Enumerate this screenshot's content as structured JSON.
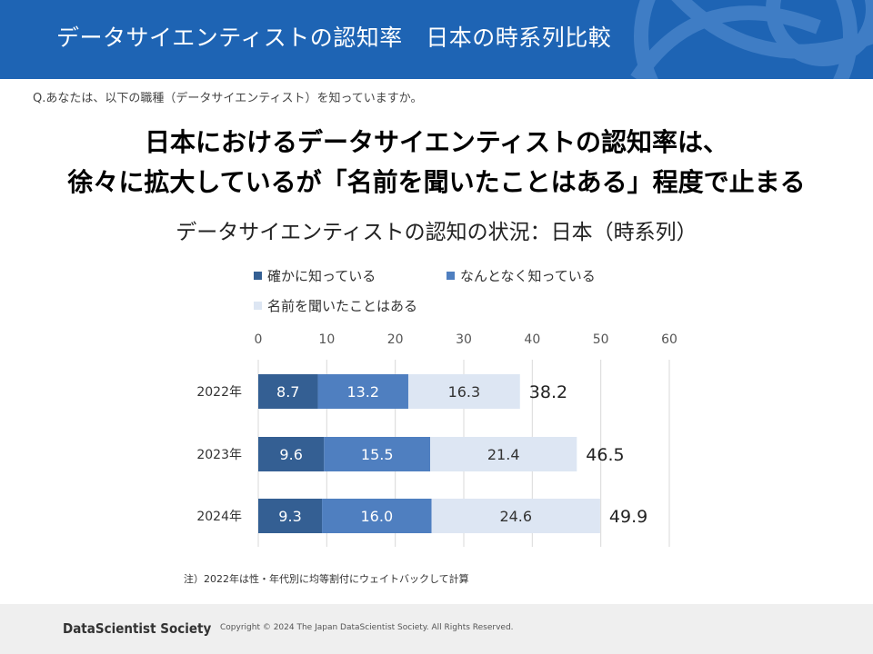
{
  "header": {
    "title": "データサイエンティストの認知率　日本の時系列比較"
  },
  "question": "Q.あなたは、以下の職種（データサイエンティスト）を知っていますか。",
  "headline": {
    "line1": "日本におけるデータサイエンティストの認知率は、",
    "line2": "徐々に拡大しているが「名前を聞いたことはある」程度で止まる"
  },
  "chart_data": {
    "type": "bar",
    "orientation": "horizontal",
    "stacked": true,
    "title": "データサイエンティストの認知の状況：日本（時系列）",
    "categories": [
      "2022年",
      "2023年",
      "2024年"
    ],
    "series": [
      {
        "name": "確かに知っている",
        "values": [
          8.7,
          9.6,
          9.3
        ],
        "color": "#345f93"
      },
      {
        "name": "なんとなく知っている",
        "values": [
          13.2,
          15.5,
          16.0
        ],
        "color": "#4f7fc0"
      },
      {
        "name": "名前を聞いたことはある",
        "values": [
          16.3,
          21.4,
          24.6
        ],
        "color": "#dde6f3"
      }
    ],
    "value_labels": {
      "確かに知っている": [
        "8.7",
        "9.6",
        "9.3"
      ],
      "なんとなく知っている": [
        "13.2",
        "15.5",
        "16.0"
      ],
      "名前を聞いたことはある": [
        "16.3",
        "21.4",
        "24.6"
      ]
    },
    "totals": [
      "38.2",
      "46.5",
      "49.9"
    ],
    "xlim": [
      0,
      60
    ],
    "xticks": [
      "0",
      "10",
      "20",
      "30",
      "40",
      "50",
      "60"
    ],
    "x_axis_position": "top",
    "grid": true,
    "legend_position": "top-left"
  },
  "footnote": "注）2022年は性・年代別に均等割付にウェイトバックして計算",
  "footer": {
    "logo": "DataScientist Society",
    "copyright": "Copyright © 2024 The Japan DataScientist Society. All Rights Reserved."
  }
}
